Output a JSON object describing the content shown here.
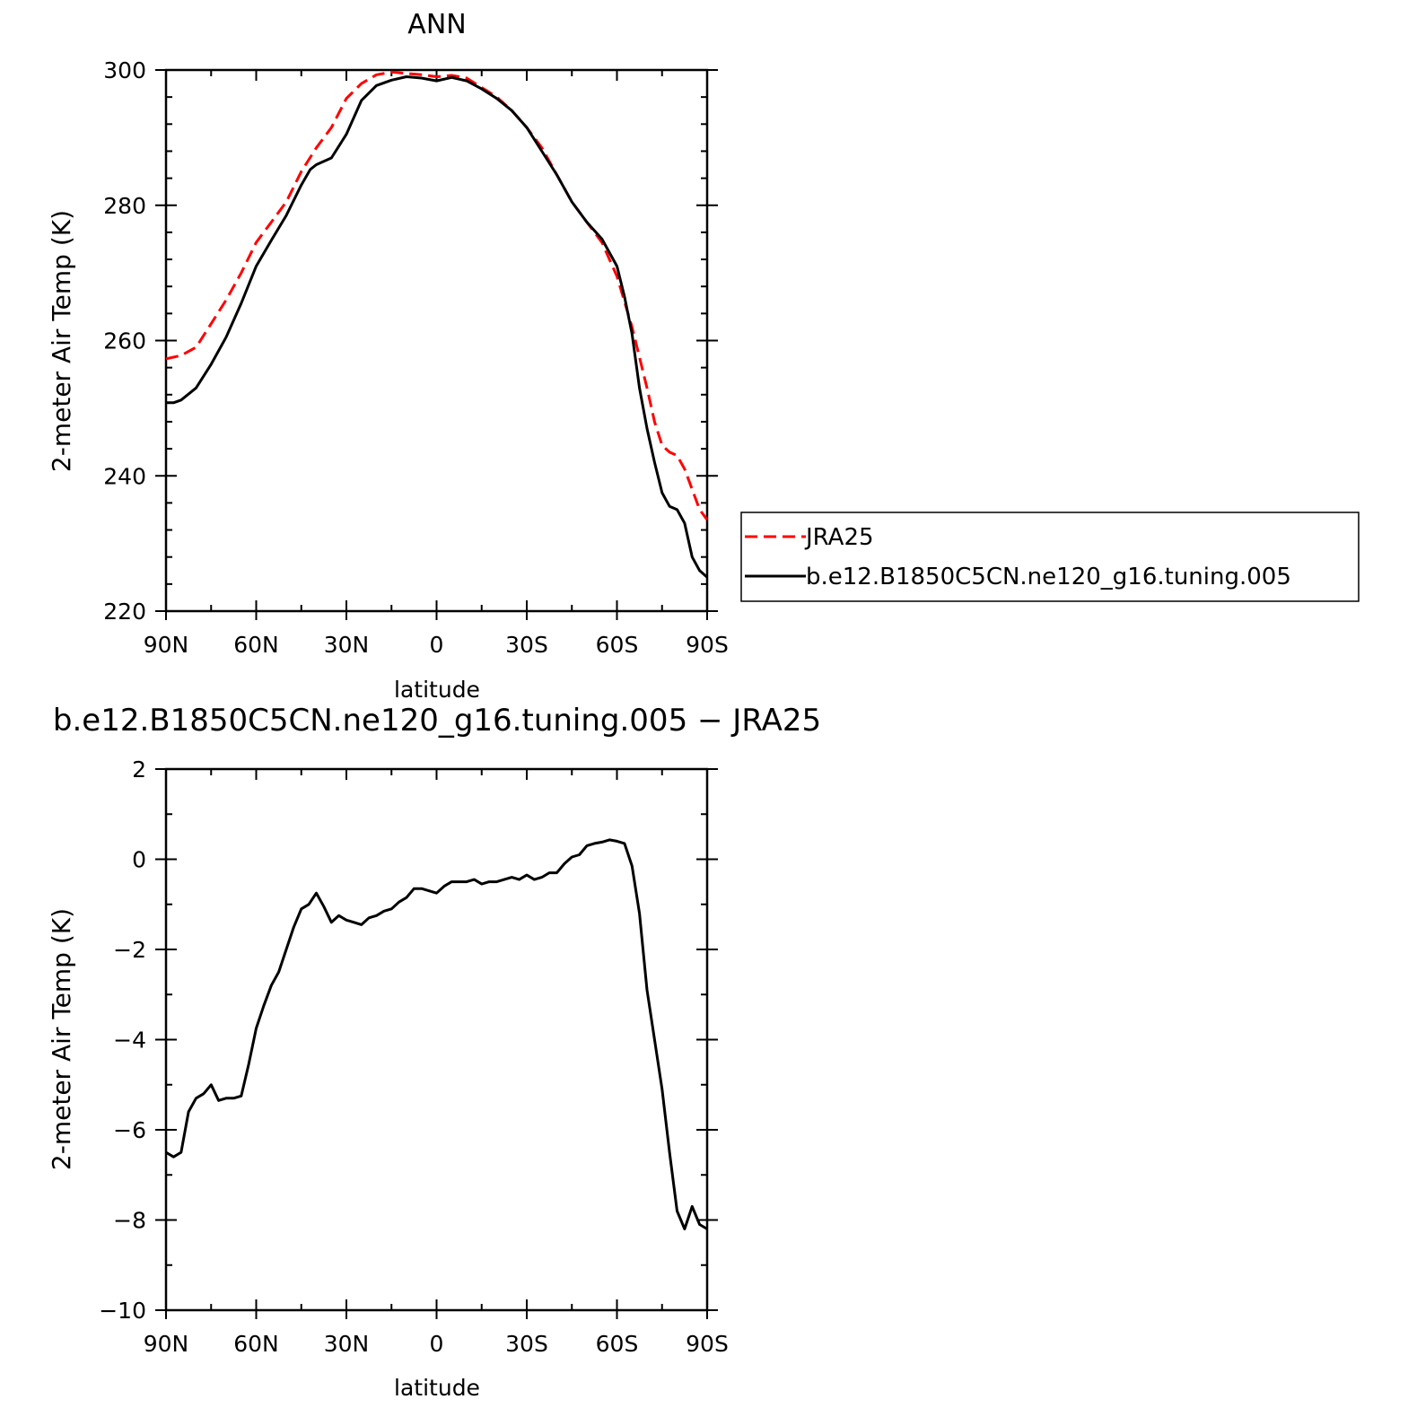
{
  "chart_data": [
    {
      "type": "line",
      "title": "ANN",
      "xlabel": "latitude",
      "ylabel": "2-meter Air Temp (K)",
      "xlim": [
        90,
        -90
      ],
      "ylim": [
        220,
        300
      ],
      "xticks": [
        90,
        60,
        30,
        0,
        -30,
        -60,
        -90
      ],
      "xtick_labels": [
        "90N",
        "60N",
        "30N",
        "0",
        "30S",
        "60S",
        "90S"
      ],
      "yticks": [
        220,
        240,
        260,
        280,
        300
      ],
      "ytick_labels": [
        "220",
        "240",
        "260",
        "280",
        "300"
      ],
      "legend": {
        "placement": "right"
      },
      "series": [
        {
          "name": "JRA25",
          "color": "#ff0000",
          "style": "dashed",
          "x": [
            90,
            85,
            80,
            75,
            70,
            65,
            60,
            55,
            50,
            45,
            40,
            35,
            30,
            25,
            20,
            15,
            10,
            5,
            0,
            -5,
            -10,
            -15,
            -20,
            -25,
            -30,
            -35,
            -40,
            -45,
            -50,
            -55,
            -60,
            -65,
            -70,
            -72.5,
            -75,
            -77.5,
            -80,
            -82.5,
            -85,
            -87.5,
            -90
          ],
          "y": [
            257.3,
            257.8,
            259,
            262.5,
            266,
            270,
            274.5,
            277.5,
            280.5,
            285,
            288.5,
            291.5,
            295.8,
            298,
            299.3,
            299.7,
            299.5,
            299.3,
            299.0,
            299.2,
            298.8,
            297.4,
            296,
            294,
            291.5,
            288.5,
            284.5,
            280.5,
            277.5,
            274.5,
            269.5,
            262,
            253,
            248,
            244.5,
            243.5,
            243,
            241,
            238,
            235,
            233.5
          ]
        },
        {
          "name": "b.e12.B1850C5CN.ne120_g16.tuning.005",
          "color": "#000000",
          "style": "solid",
          "x": [
            90,
            87.5,
            85,
            80,
            75,
            70,
            65,
            60,
            55,
            50,
            45,
            42,
            40,
            35,
            30,
            25,
            20,
            15,
            10,
            5,
            0,
            -5,
            -10,
            -15,
            -20,
            -25,
            -30,
            -35,
            -40,
            -45,
            -50,
            -55,
            -60,
            -62.5,
            -65,
            -67.5,
            -70,
            -72.5,
            -75,
            -77.5,
            -80,
            -82.5,
            -85,
            -87.5,
            -90
          ],
          "y": [
            250.8,
            250.8,
            251.2,
            253,
            256.5,
            260.5,
            265.5,
            271,
            274.8,
            278.5,
            283,
            285.3,
            286,
            287,
            290.5,
            295.5,
            297.7,
            298.5,
            299.0,
            298.8,
            298.4,
            298.9,
            298.4,
            297.2,
            295.8,
            294,
            291.5,
            288,
            284.5,
            280.5,
            277.5,
            275,
            271,
            266.5,
            261,
            253,
            247,
            242,
            237.5,
            235.5,
            235,
            233,
            228,
            226,
            225
          ]
        }
      ]
    },
    {
      "type": "line",
      "title": "b.e12.B1850C5CN.ne120_g16.tuning.005 − JRA25",
      "xlabel": "latitude",
      "ylabel": "2-meter Air Temp (K)",
      "xlim": [
        90,
        -90
      ],
      "ylim": [
        -10,
        2
      ],
      "xticks": [
        90,
        60,
        30,
        0,
        -30,
        -60,
        -90
      ],
      "xtick_labels": [
        "90N",
        "60N",
        "30N",
        "0",
        "30S",
        "60S",
        "90S"
      ],
      "yticks": [
        -10,
        -8,
        -6,
        -4,
        -2,
        0,
        2
      ],
      "ytick_labels": [
        "−10",
        "−8",
        "−6",
        "−4",
        "−2",
        "0",
        "2"
      ],
      "series": [
        {
          "color": "#000000",
          "style": "solid",
          "x": [
            90,
            87.5,
            85,
            82.5,
            80,
            77.5,
            75,
            72.5,
            70,
            67.5,
            65,
            62.5,
            60,
            57.5,
            55,
            52.5,
            50,
            47.5,
            45,
            42.5,
            40,
            37.5,
            35,
            32.5,
            30,
            27.5,
            25,
            22.5,
            20,
            17.5,
            15,
            12.5,
            10,
            7.5,
            5,
            2.5,
            0,
            -2.5,
            -5,
            -7.5,
            -10,
            -12.5,
            -15,
            -17.5,
            -20,
            -22.5,
            -25,
            -27.5,
            -30,
            -32.5,
            -35,
            -37.5,
            -40,
            -42.5,
            -45,
            -47.5,
            -50,
            -52.5,
            -55,
            -57.5,
            -60,
            -62.5,
            -65,
            -67.5,
            -70,
            -72.5,
            -75,
            -77.5,
            -80,
            -82.5,
            -85,
            -87.5,
            -90
          ],
          "y": [
            -6.5,
            -6.6,
            -6.5,
            -5.6,
            -5.3,
            -5.2,
            -5.0,
            -5.35,
            -5.3,
            -5.3,
            -5.25,
            -4.55,
            -3.75,
            -3.25,
            -2.8,
            -2.5,
            -2.0,
            -1.5,
            -1.1,
            -1.0,
            -0.75,
            -1.05,
            -1.4,
            -1.25,
            -1.35,
            -1.4,
            -1.45,
            -1.3,
            -1.25,
            -1.15,
            -1.1,
            -0.95,
            -0.85,
            -0.65,
            -0.65,
            -0.7,
            -0.75,
            -0.6,
            -0.5,
            -0.5,
            -0.5,
            -0.45,
            -0.55,
            -0.5,
            -0.5,
            -0.45,
            -0.4,
            -0.45,
            -0.35,
            -0.45,
            -0.4,
            -0.3,
            -0.3,
            -0.1,
            0.05,
            0.1,
            0.3,
            0.35,
            0.38,
            0.43,
            0.4,
            0.35,
            -0.15,
            -1.2,
            -2.9,
            -4.0,
            -5.1,
            -6.5,
            -7.8,
            -8.2,
            -7.7,
            -8.1,
            -8.2
          ]
        }
      ]
    }
  ]
}
